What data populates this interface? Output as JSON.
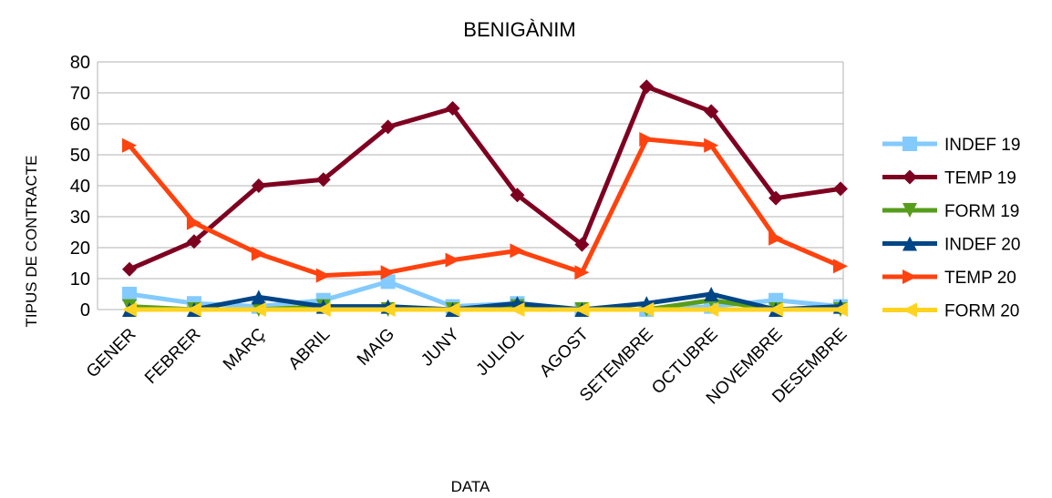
{
  "chart_data": {
    "type": "line",
    "title": "BENIGÀNIM",
    "xlabel": "DATA",
    "ylabel": "TIPUS DE CONTRACTE",
    "categories": [
      "GENER",
      "FEBRER",
      "MARÇ",
      "ABRIL",
      "MAIG",
      "JUNY",
      "JULIOL",
      "AGOST",
      "SETEMBRE",
      "OCTUBRE",
      "NOVEMBRE",
      "DESEMBRE"
    ],
    "series": [
      {
        "name": "INDEF 19",
        "color": "#83caff",
        "marker": "square",
        "values": [
          5,
          2,
          1,
          3,
          9,
          1,
          2,
          0,
          0,
          1,
          3,
          1
        ]
      },
      {
        "name": "TEMP 19",
        "color": "#7e0021",
        "marker": "diamond",
        "values": [
          13,
          22,
          40,
          42,
          59,
          65,
          37,
          21,
          72,
          64,
          36,
          39
        ]
      },
      {
        "name": "FORM 19",
        "color": "#579d1c",
        "marker": "triangle-down",
        "values": [
          1,
          0,
          0,
          1,
          0,
          0,
          1,
          0,
          0,
          3,
          0,
          0
        ]
      },
      {
        "name": "INDEF 20",
        "color": "#004586",
        "marker": "triangle-up",
        "values": [
          0,
          0,
          4,
          1,
          1,
          0,
          2,
          0,
          2,
          5,
          0,
          1
        ]
      },
      {
        "name": "TEMP 20",
        "color": "#ff420e",
        "marker": "triangle-right",
        "values": [
          53,
          28,
          18,
          11,
          12,
          16,
          19,
          12,
          55,
          53,
          23,
          14
        ]
      },
      {
        "name": "FORM 20",
        "color": "#ffd320",
        "marker": "triangle-left",
        "values": [
          0,
          0,
          0,
          0,
          0,
          0,
          0,
          0,
          0,
          0,
          0,
          0
        ]
      }
    ],
    "ylim": [
      0,
      80
    ],
    "yticks": [
      0,
      10,
      20,
      30,
      40,
      50,
      60,
      70,
      80
    ],
    "grid": true,
    "legend": "right"
  }
}
